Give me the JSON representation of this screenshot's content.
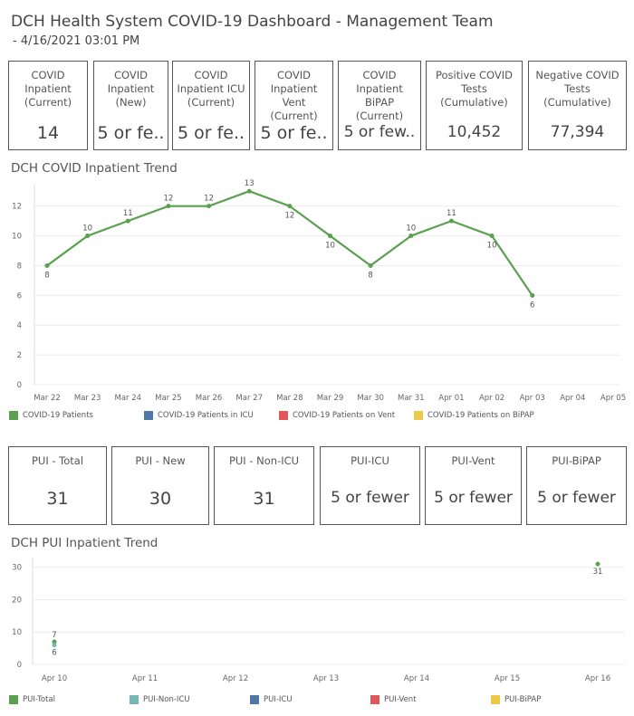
{
  "header": {
    "title": "DCH Health System COVID-19 Dashboard - Management Team",
    "subtitle": "- 4/16/2021 03:01 PM"
  },
  "top_cards": [
    {
      "label": "COVID\nInpatient\n(Current)",
      "value": "14"
    },
    {
      "label": "COVID\nInpatient\n(New)",
      "value": "5 or fe.."
    },
    {
      "label": "COVID\nInpatient ICU\n(Current)",
      "value": "5 or fe.."
    },
    {
      "label": "COVID\nInpatient Vent\n(Current)",
      "value": "5 or fe.."
    },
    {
      "label": "COVID\nInpatient BiPAP\n(Current)",
      "value": "5 or few.."
    },
    {
      "label": "Positive COVID\nTests\n(Cumulative)",
      "value": "10,452"
    },
    {
      "label": "Negative COVID\nTests\n(Cumulative)",
      "value": "77,394"
    }
  ],
  "pui_cards": [
    {
      "label": "PUI - Total",
      "value": "31"
    },
    {
      "label": "PUI - New",
      "value": "30"
    },
    {
      "label": "PUI - Non-ICU",
      "value": "31"
    },
    {
      "label": "PUI-ICU",
      "value": "5 or fewer"
    },
    {
      "label": "PUI-Vent",
      "value": "5 or fewer"
    },
    {
      "label": "PUI-BiPAP",
      "value": "5 or fewer"
    }
  ],
  "colors": {
    "green": "#59a14f",
    "teal": "#76b7b2",
    "blue": "#4e79a7",
    "red": "#e15759",
    "yellow": "#edc948",
    "grid": "#ececec"
  },
  "chart_data": [
    {
      "type": "line",
      "title": "DCH COVID Inpatient Trend",
      "x": [
        "Mar 22",
        "Mar 23",
        "Mar 24",
        "Mar 25",
        "Mar 26",
        "Mar 27",
        "Mar 28",
        "Mar 29",
        "Mar 30",
        "Mar 31",
        "Apr 01",
        "Apr 02",
        "Apr 03",
        "Apr 04",
        "Apr 05"
      ],
      "series": [
        {
          "name": "COVID-19 Patients",
          "color": "#59a14f",
          "values": [
            8,
            10,
            11,
            12,
            12,
            13,
            12,
            10,
            8,
            10,
            11,
            10,
            6,
            null,
            null
          ]
        }
      ],
      "legend": [
        "COVID-19 Patients",
        "COVID-19 Patients in ICU",
        "COVID-19 Patients on Vent",
        "COVID-19 Patients on BiPAP"
      ],
      "legend_colors": [
        "#59a14f",
        "#4e79a7",
        "#e15759",
        "#edc948"
      ],
      "yticks": [
        0,
        2,
        4,
        6,
        8,
        10,
        12
      ],
      "ylim": [
        0,
        13.5
      ],
      "grid": true,
      "legend_position": "bottom"
    },
    {
      "type": "scatter",
      "title": "DCH PUI Inpatient Trend",
      "x": [
        "Apr 10",
        "Apr 11",
        "Apr 12",
        "Apr 13",
        "Apr 14",
        "Apr 15",
        "Apr 16"
      ],
      "points": [
        {
          "x": "Apr 10",
          "y": 7,
          "label": "7",
          "color": "#59a14f"
        },
        {
          "x": "Apr 10",
          "y": 6,
          "label": "6",
          "color": "#76b7b2"
        },
        {
          "x": "Apr 16",
          "y": 31,
          "label": "31",
          "color": "#59a14f"
        }
      ],
      "legend": [
        "PUI-Total",
        "PUI-Non-ICU",
        "PUI-ICU",
        "PUI-Vent",
        "PUI-BiPAP"
      ],
      "legend_colors": [
        "#59a14f",
        "#76b7b2",
        "#4e79a7",
        "#e15759",
        "#edc948"
      ],
      "yticks": [
        0,
        10,
        20,
        30
      ],
      "ylim": [
        0,
        33
      ],
      "grid": true,
      "legend_position": "bottom"
    }
  ]
}
